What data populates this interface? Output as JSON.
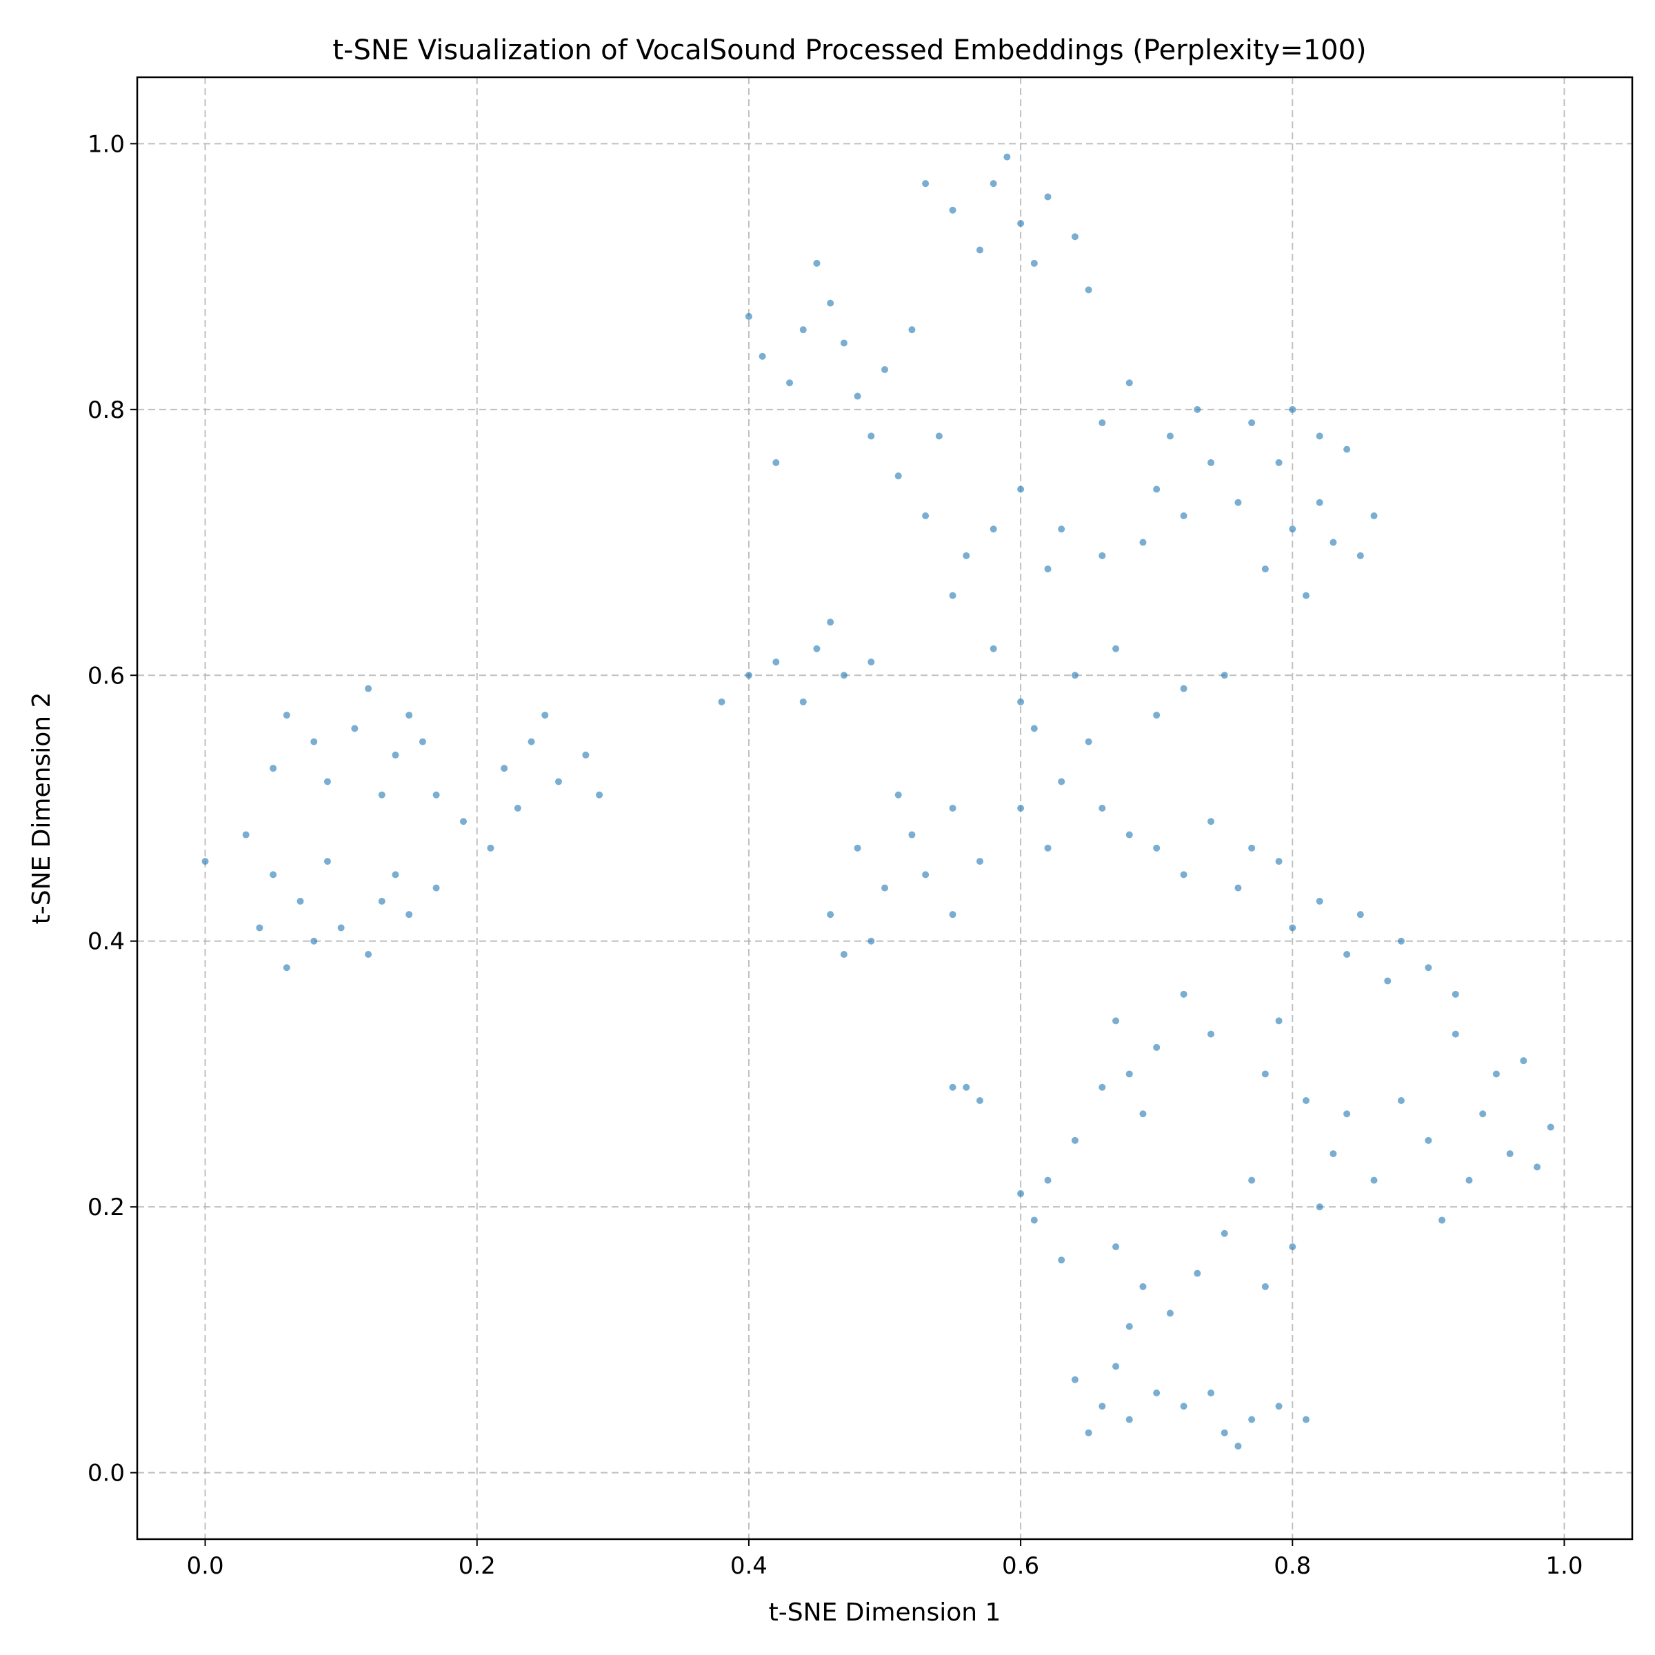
{
  "chart_data": {
    "type": "scatter",
    "title": "t-SNE Visualization of VocalSound Processed Embeddings (Perplexity=100)",
    "xlabel": "t-SNE Dimension 1",
    "ylabel": "t-SNE Dimension 2",
    "xlim": [
      -0.05,
      1.05
    ],
    "ylim": [
      -0.05,
      1.05
    ],
    "xticks": [
      0.0,
      0.2,
      0.4,
      0.6,
      0.8,
      1.0
    ],
    "yticks": [
      0.0,
      0.2,
      0.4,
      0.6,
      0.8,
      1.0
    ],
    "xtick_labels": [
      "0.0",
      "0.2",
      "0.4",
      "0.6",
      "0.8",
      "1.0"
    ],
    "ytick_labels": [
      "0.0",
      "0.2",
      "0.4",
      "0.6",
      "0.8",
      "1.0"
    ],
    "grid": true,
    "legend": "none",
    "point_color": "#1f77b4",
    "point_alpha": 0.6,
    "series": [
      {
        "points": [
          [
            0.08,
            0.55
          ],
          [
            0.11,
            0.56
          ],
          [
            0.14,
            0.54
          ],
          [
            0.17,
            0.51
          ],
          [
            0.06,
            0.57
          ],
          [
            0.09,
            0.52
          ],
          [
            0.12,
            0.59
          ],
          [
            0.15,
            0.57
          ],
          [
            0.19,
            0.49
          ],
          [
            0.05,
            0.53
          ],
          [
            0.13,
            0.51
          ],
          [
            0.16,
            0.55
          ],
          [
            0.22,
            0.53
          ],
          [
            0.24,
            0.55
          ],
          [
            0.26,
            0.52
          ],
          [
            0.23,
            0.5
          ],
          [
            0.25,
            0.57
          ],
          [
            0.28,
            0.54
          ],
          [
            0.29,
            0.51
          ],
          [
            0.21,
            0.47
          ],
          [
            0.07,
            0.43
          ],
          [
            0.1,
            0.41
          ],
          [
            0.13,
            0.43
          ],
          [
            0.05,
            0.45
          ],
          [
            0.08,
            0.4
          ],
          [
            0.12,
            0.39
          ],
          [
            0.15,
            0.42
          ],
          [
            0.17,
            0.44
          ],
          [
            0.04,
            0.41
          ],
          [
            0.06,
            0.38
          ],
          [
            0.09,
            0.46
          ],
          [
            0.14,
            0.45
          ],
          [
            0.0,
            0.46
          ],
          [
            0.03,
            0.48
          ],
          [
            0.41,
            0.84
          ],
          [
            0.44,
            0.86
          ],
          [
            0.47,
            0.85
          ],
          [
            0.5,
            0.83
          ],
          [
            0.43,
            0.82
          ],
          [
            0.46,
            0.88
          ],
          [
            0.48,
            0.81
          ],
          [
            0.52,
            0.86
          ],
          [
            0.4,
            0.87
          ],
          [
            0.45,
            0.91
          ],
          [
            0.42,
            0.76
          ],
          [
            0.49,
            0.78
          ],
          [
            0.55,
            0.95
          ],
          [
            0.58,
            0.97
          ],
          [
            0.6,
            0.94
          ],
          [
            0.62,
            0.96
          ],
          [
            0.57,
            0.92
          ],
          [
            0.61,
            0.91
          ],
          [
            0.64,
            0.93
          ],
          [
            0.59,
            0.99
          ],
          [
            0.53,
            0.97
          ],
          [
            0.65,
            0.89
          ],
          [
            0.68,
            0.82
          ],
          [
            0.71,
            0.78
          ],
          [
            0.74,
            0.76
          ],
          [
            0.7,
            0.74
          ],
          [
            0.66,
            0.79
          ],
          [
            0.73,
            0.8
          ],
          [
            0.77,
            0.79
          ],
          [
            0.8,
            0.8
          ],
          [
            0.82,
            0.78
          ],
          [
            0.79,
            0.76
          ],
          [
            0.84,
            0.77
          ],
          [
            0.76,
            0.73
          ],
          [
            0.8,
            0.71
          ],
          [
            0.83,
            0.7
          ],
          [
            0.85,
            0.69
          ],
          [
            0.82,
            0.73
          ],
          [
            0.86,
            0.72
          ],
          [
            0.78,
            0.68
          ],
          [
            0.81,
            0.66
          ],
          [
            0.6,
            0.74
          ],
          [
            0.63,
            0.71
          ],
          [
            0.66,
            0.69
          ],
          [
            0.69,
            0.7
          ],
          [
            0.62,
            0.68
          ],
          [
            0.72,
            0.72
          ],
          [
            0.58,
            0.71
          ],
          [
            0.53,
            0.72
          ],
          [
            0.55,
            0.66
          ],
          [
            0.56,
            0.69
          ],
          [
            0.51,
            0.75
          ],
          [
            0.54,
            0.78
          ],
          [
            0.42,
            0.61
          ],
          [
            0.45,
            0.62
          ],
          [
            0.47,
            0.6
          ],
          [
            0.44,
            0.58
          ],
          [
            0.38,
            0.58
          ],
          [
            0.4,
            0.6
          ],
          [
            0.46,
            0.64
          ],
          [
            0.49,
            0.61
          ],
          [
            0.48,
            0.47
          ],
          [
            0.52,
            0.48
          ],
          [
            0.55,
            0.5
          ],
          [
            0.5,
            0.44
          ],
          [
            0.53,
            0.45
          ],
          [
            0.57,
            0.46
          ],
          [
            0.46,
            0.42
          ],
          [
            0.47,
            0.39
          ],
          [
            0.49,
            0.4
          ],
          [
            0.55,
            0.42
          ],
          [
            0.51,
            0.51
          ],
          [
            0.6,
            0.5
          ],
          [
            0.63,
            0.52
          ],
          [
            0.66,
            0.5
          ],
          [
            0.62,
            0.47
          ],
          [
            0.65,
            0.55
          ],
          [
            0.68,
            0.48
          ],
          [
            0.61,
            0.56
          ],
          [
            0.7,
            0.47
          ],
          [
            0.74,
            0.49
          ],
          [
            0.77,
            0.47
          ],
          [
            0.72,
            0.45
          ],
          [
            0.76,
            0.44
          ],
          [
            0.79,
            0.46
          ],
          [
            0.72,
            0.59
          ],
          [
            0.75,
            0.6
          ],
          [
            0.7,
            0.57
          ],
          [
            0.67,
            0.62
          ],
          [
            0.64,
            0.6
          ],
          [
            0.58,
            0.62
          ],
          [
            0.6,
            0.58
          ],
          [
            0.82,
            0.43
          ],
          [
            0.85,
            0.42
          ],
          [
            0.88,
            0.4
          ],
          [
            0.9,
            0.38
          ],
          [
            0.84,
            0.39
          ],
          [
            0.87,
            0.37
          ],
          [
            0.92,
            0.36
          ],
          [
            0.8,
            0.41
          ],
          [
            0.92,
            0.33
          ],
          [
            0.95,
            0.3
          ],
          [
            0.97,
            0.31
          ],
          [
            0.94,
            0.27
          ],
          [
            0.96,
            0.24
          ],
          [
            0.98,
            0.23
          ],
          [
            0.93,
            0.22
          ],
          [
            0.9,
            0.25
          ],
          [
            0.88,
            0.28
          ],
          [
            0.99,
            0.26
          ],
          [
            0.91,
            0.19
          ],
          [
            0.68,
            0.3
          ],
          [
            0.7,
            0.32
          ],
          [
            0.69,
            0.27
          ],
          [
            0.67,
            0.34
          ],
          [
            0.66,
            0.29
          ],
          [
            0.72,
            0.36
          ],
          [
            0.62,
            0.22
          ],
          [
            0.64,
            0.25
          ],
          [
            0.61,
            0.19
          ],
          [
            0.63,
            0.16
          ],
          [
            0.6,
            0.21
          ],
          [
            0.67,
            0.17
          ],
          [
            0.69,
            0.14
          ],
          [
            0.71,
            0.12
          ],
          [
            0.68,
            0.11
          ],
          [
            0.73,
            0.15
          ],
          [
            0.75,
            0.18
          ],
          [
            0.78,
            0.14
          ],
          [
            0.8,
            0.17
          ],
          [
            0.82,
            0.2
          ],
          [
            0.77,
            0.22
          ],
          [
            0.66,
            0.05
          ],
          [
            0.68,
            0.04
          ],
          [
            0.7,
            0.06
          ],
          [
            0.65,
            0.03
          ],
          [
            0.67,
            0.08
          ],
          [
            0.72,
            0.05
          ],
          [
            0.64,
            0.07
          ],
          [
            0.75,
            0.03
          ],
          [
            0.77,
            0.04
          ],
          [
            0.79,
            0.05
          ],
          [
            0.76,
            0.02
          ],
          [
            0.74,
            0.06
          ],
          [
            0.81,
            0.04
          ],
          [
            0.56,
            0.29
          ],
          [
            0.57,
            0.28
          ],
          [
            0.55,
            0.29
          ],
          [
            0.78,
            0.3
          ],
          [
            0.81,
            0.28
          ],
          [
            0.84,
            0.27
          ],
          [
            0.79,
            0.34
          ],
          [
            0.74,
            0.33
          ],
          [
            0.83,
            0.24
          ],
          [
            0.86,
            0.22
          ]
        ]
      }
    ]
  }
}
